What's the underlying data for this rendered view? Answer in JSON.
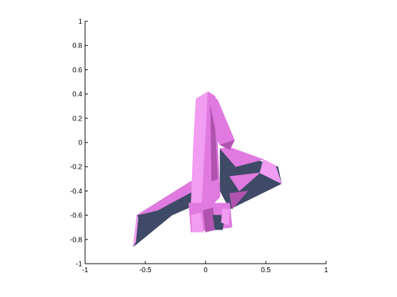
{
  "chart_data": {
    "type": "surface",
    "title": "",
    "xlabel": "",
    "ylabel": "",
    "xlim": [
      -1,
      1
    ],
    "ylim": [
      -1,
      1
    ],
    "x_ticks": [
      -1,
      -0.5,
      0,
      0.5,
      1
    ],
    "x_tick_labels": [
      "-1",
      "-0.5",
      "0",
      "0.5",
      "1"
    ],
    "y_ticks": [
      -1,
      -0.8,
      -0.6,
      -0.4,
      -0.2,
      0,
      0.2,
      0.4,
      0.6,
      0.8,
      1
    ],
    "y_tick_labels": [
      "-1",
      "-0.8",
      "-0.6",
      "-0.4",
      "-0.2",
      "0",
      "0.2",
      "0.4",
      "0.6",
      "0.8",
      "1"
    ],
    "grid": false,
    "colors": {
      "body_pink": "#e07ae0",
      "body_pink_light": "#f29cf2",
      "body_pink_dark": "#b054b0",
      "shadow_slate": "#3f4a66",
      "shadow_slate_dark": "#2f3852"
    },
    "shapes": [
      {
        "name": "left-wing-dark",
        "fill": "shadow_slate",
        "points": [
          [
            -0.6,
            -0.86
          ],
          [
            -0.57,
            -0.6
          ],
          [
            -0.12,
            -0.32
          ],
          [
            -0.05,
            -0.5
          ],
          [
            -0.28,
            -0.6
          ]
        ]
      },
      {
        "name": "left-wing-pink",
        "fill": "body_pink",
        "points": [
          [
            -0.57,
            -0.6
          ],
          [
            -0.12,
            -0.32
          ],
          [
            -0.1,
            -0.4
          ],
          [
            -0.4,
            -0.56
          ]
        ]
      },
      {
        "name": "left-wing-edge",
        "fill": "body_pink_light",
        "points": [
          [
            -0.6,
            -0.86
          ],
          [
            -0.57,
            -0.6
          ],
          [
            -0.56,
            -0.62
          ],
          [
            -0.58,
            -0.82
          ]
        ]
      },
      {
        "name": "right-wing-dark",
        "fill": "shadow_slate",
        "points": [
          [
            0.12,
            -0.05
          ],
          [
            0.6,
            -0.2
          ],
          [
            0.63,
            -0.34
          ],
          [
            0.2,
            -0.55
          ],
          [
            0.12,
            -0.4
          ]
        ]
      },
      {
        "name": "right-wing-pink-upper",
        "fill": "body_pink",
        "points": [
          [
            0.12,
            -0.05
          ],
          [
            0.2,
            -0.04
          ],
          [
            0.48,
            -0.14
          ],
          [
            0.25,
            -0.2
          ]
        ]
      },
      {
        "name": "right-wing-pink-tip",
        "fill": "body_pink_light",
        "points": [
          [
            0.48,
            -0.14
          ],
          [
            0.58,
            -0.19
          ],
          [
            0.63,
            -0.34
          ],
          [
            0.45,
            -0.25
          ]
        ]
      },
      {
        "name": "right-wing-pink-mid",
        "fill": "body_pink",
        "points": [
          [
            0.2,
            -0.28
          ],
          [
            0.45,
            -0.25
          ],
          [
            0.28,
            -0.4
          ]
        ]
      },
      {
        "name": "right-wing-pink-lower",
        "fill": "body_pink_dark",
        "points": [
          [
            0.2,
            -0.42
          ],
          [
            0.35,
            -0.4
          ],
          [
            0.22,
            -0.55
          ]
        ]
      },
      {
        "name": "tail-fin",
        "fill": "body_pink",
        "points": [
          [
            0.04,
            0.4
          ],
          [
            0.1,
            0.35
          ],
          [
            0.24,
            0.02
          ],
          [
            0.12,
            -0.02
          ],
          [
            0.05,
            0.1
          ]
        ]
      },
      {
        "name": "tail-fin-dark",
        "fill": "body_pink_dark",
        "points": [
          [
            0.12,
            -0.02
          ],
          [
            0.24,
            0.02
          ],
          [
            0.2,
            -0.06
          ]
        ]
      },
      {
        "name": "fuselage-left",
        "fill": "body_pink_light",
        "points": [
          [
            -0.08,
            0.36
          ],
          [
            0.02,
            0.42
          ],
          [
            -0.03,
            -0.5
          ],
          [
            -0.12,
            -0.5
          ],
          [
            -0.1,
            0.0
          ]
        ]
      },
      {
        "name": "fuselage-right",
        "fill": "body_pink",
        "points": [
          [
            0.02,
            0.42
          ],
          [
            0.08,
            0.38
          ],
          [
            0.1,
            0.0
          ],
          [
            0.12,
            -0.45
          ],
          [
            0.02,
            -0.55
          ],
          [
            -0.03,
            -0.5
          ]
        ]
      },
      {
        "name": "fuselage-shade",
        "fill": "body_pink_dark",
        "points": [
          [
            0.04,
            0.3
          ],
          [
            0.08,
            0.1
          ],
          [
            0.1,
            -0.3
          ],
          [
            0.05,
            -0.32
          ]
        ]
      },
      {
        "name": "engine-block",
        "fill": "body_pink",
        "points": [
          [
            -0.14,
            -0.5
          ],
          [
            0.2,
            -0.5
          ],
          [
            0.22,
            -0.7
          ],
          [
            -0.12,
            -0.74
          ]
        ]
      },
      {
        "name": "engine-nozzle-1",
        "fill": "body_pink_light",
        "points": [
          [
            -0.12,
            -0.6
          ],
          [
            -0.04,
            -0.58
          ],
          [
            -0.02,
            -0.74
          ],
          [
            -0.11,
            -0.74
          ]
        ]
      },
      {
        "name": "engine-nozzle-2",
        "fill": "body_pink_dark",
        "points": [
          [
            -0.02,
            -0.56
          ],
          [
            0.06,
            -0.54
          ],
          [
            0.08,
            -0.72
          ],
          [
            0.0,
            -0.74
          ]
        ]
      },
      {
        "name": "engine-nozzle-3",
        "fill": "shadow_slate",
        "points": [
          [
            0.06,
            -0.6
          ],
          [
            0.16,
            -0.6
          ],
          [
            0.14,
            -0.72
          ],
          [
            0.08,
            -0.72
          ]
        ]
      },
      {
        "name": "engine-nozzle-4",
        "fill": "body_pink_light",
        "points": [
          [
            0.14,
            -0.55
          ],
          [
            0.2,
            -0.55
          ],
          [
            0.19,
            -0.68
          ],
          [
            0.13,
            -0.66
          ]
        ]
      }
    ]
  }
}
